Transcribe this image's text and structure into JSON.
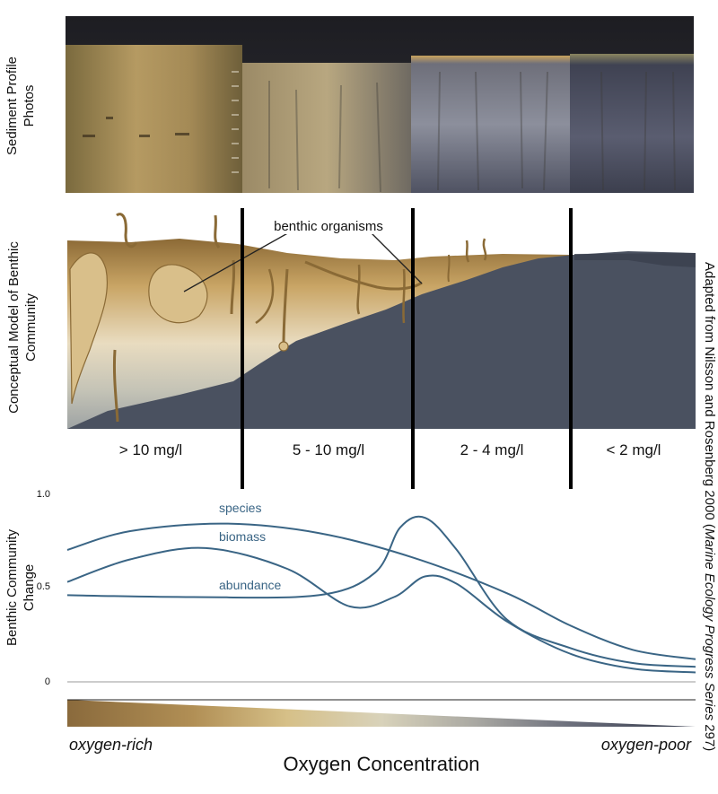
{
  "labels": {
    "sediment_profile_line1": "Sediment Profile",
    "sediment_profile_line2": "Photos",
    "conceptual_line1": "Conceptual Model of Benthic",
    "conceptual_line2": "Community",
    "benthic_organisms": "benthic organisms",
    "zones": [
      "> 10 mg/l",
      "5 - 10 mg/l",
      "2 - 4 mg/l",
      "< 2 mg/l"
    ],
    "chart_ylabel_line1": "Benthic Community",
    "chart_ylabel_line2": "Change",
    "oxygen_rich": "oxygen-rich",
    "oxygen_poor": "oxygen-poor",
    "oxygen_axis": "Oxygen Concentration",
    "credit_plain": "Adapted from Nilsson and Rosenberg 2000 (",
    "credit_italic": "Marine Ecology Progress Series",
    "credit_end": " 297)"
  },
  "colors": {
    "curve": "#3a6585",
    "sediment_dark": "#4a5160",
    "oxygen_rich": "#8a6a3c",
    "oxygen_poor": "#33394a"
  },
  "chart_data": {
    "type": "line",
    "ylabel": "Benthic Community Change",
    "xlabel": "Oxygen Concentration",
    "yticks": [
      "1.0",
      "0.5",
      "0"
    ],
    "ylim": [
      0,
      1.0
    ],
    "x_range": [
      0,
      1
    ],
    "series": [
      {
        "name": "species",
        "x": [
          0,
          0.1,
          0.25,
          0.4,
          0.55,
          0.7,
          0.8,
          0.9,
          1.0
        ],
        "y": [
          0.7,
          0.8,
          0.84,
          0.79,
          0.66,
          0.47,
          0.3,
          0.17,
          0.12
        ]
      },
      {
        "name": "biomass",
        "x": [
          0,
          0.1,
          0.22,
          0.35,
          0.45,
          0.52,
          0.57,
          0.62,
          0.7,
          0.8,
          0.9,
          1.0
        ],
        "y": [
          0.53,
          0.65,
          0.71,
          0.6,
          0.4,
          0.45,
          0.56,
          0.52,
          0.32,
          0.15,
          0.07,
          0.05
        ]
      },
      {
        "name": "abundance",
        "x": [
          0,
          0.2,
          0.4,
          0.49,
          0.53,
          0.57,
          0.62,
          0.7,
          0.8,
          0.9,
          1.0
        ],
        "y": [
          0.46,
          0.45,
          0.46,
          0.58,
          0.82,
          0.87,
          0.7,
          0.33,
          0.18,
          0.1,
          0.08
        ]
      }
    ]
  }
}
